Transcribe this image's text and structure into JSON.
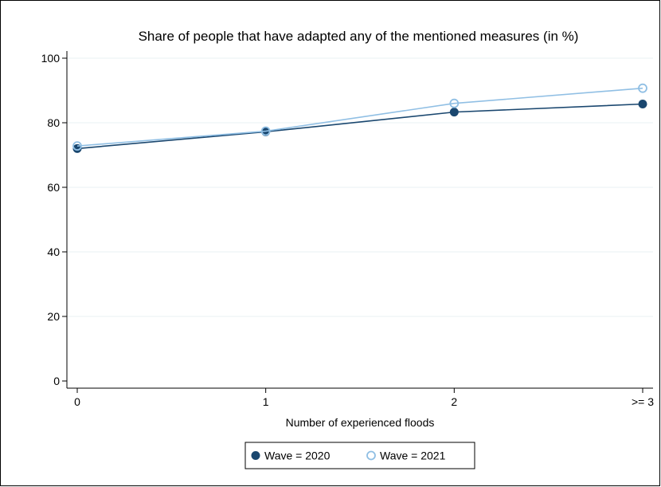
{
  "chart_data": {
    "type": "line",
    "title": "Share of people that have adapted any of the mentioned measures (in %)",
    "xlabel": "Number of experienced floods",
    "ylabel": "",
    "categories": [
      "0",
      "1",
      "2",
      ">= 3"
    ],
    "y_ticks": [
      "0",
      "20",
      "40",
      "60",
      "80",
      "100"
    ],
    "ylim": [
      0,
      100
    ],
    "grid": true,
    "legend_position": "bottom",
    "series": [
      {
        "name": "Wave = 2020",
        "values": [
          72.0,
          77.2,
          83.3,
          85.8
        ],
        "color": "#1a476f",
        "marker": "filled-circle"
      },
      {
        "name": "Wave = 2021",
        "values": [
          72.8,
          77.4,
          86.0,
          90.7
        ],
        "color": "#90bfe4",
        "marker": "hollow-circle"
      }
    ]
  }
}
